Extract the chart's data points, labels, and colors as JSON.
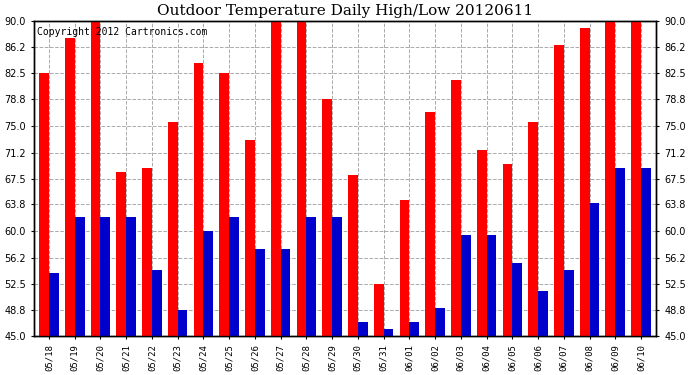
{
  "title": "Outdoor Temperature Daily High/Low 20120611",
  "copyright": "Copyright 2012 Cartronics.com",
  "dates": [
    "05/18",
    "05/19",
    "05/20",
    "05/21",
    "05/22",
    "05/23",
    "05/24",
    "05/25",
    "05/26",
    "05/27",
    "05/28",
    "05/29",
    "05/30",
    "05/31",
    "06/01",
    "06/02",
    "06/03",
    "06/04",
    "06/05",
    "06/06",
    "06/07",
    "06/08",
    "06/09",
    "06/10"
  ],
  "highs": [
    82.5,
    87.5,
    90.0,
    68.5,
    69.0,
    75.5,
    84.0,
    82.5,
    73.0,
    90.0,
    90.0,
    78.8,
    68.0,
    52.5,
    64.5,
    77.0,
    81.5,
    71.5,
    69.5,
    75.5,
    86.5,
    89.0,
    90.0,
    90.0
  ],
  "lows": [
    54.0,
    62.0,
    62.0,
    62.0,
    54.5,
    48.8,
    60.0,
    62.0,
    57.5,
    57.5,
    62.0,
    62.0,
    47.0,
    46.0,
    47.0,
    49.0,
    59.5,
    59.5,
    55.5,
    51.5,
    54.5,
    64.0,
    69.0,
    69.0
  ],
  "ylim": [
    45.0,
    90.0
  ],
  "yticks": [
    45.0,
    48.8,
    52.5,
    56.2,
    60.0,
    63.8,
    67.5,
    71.2,
    75.0,
    78.8,
    82.5,
    86.2,
    90.0
  ],
  "high_color": "#ff0000",
  "low_color": "#0000cc",
  "background_color": "#ffffff",
  "grid_color": "#aaaaaa",
  "title_fontsize": 11,
  "copyright_fontsize": 7,
  "bar_width": 0.38
}
